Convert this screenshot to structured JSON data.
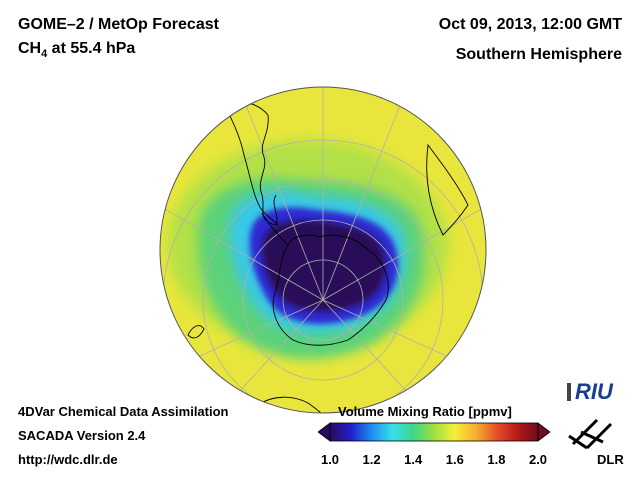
{
  "header": {
    "title": "GOME–2 / MetOp Forecast",
    "species": "CH",
    "species_sub": "4",
    "level": " at 55.4 hPa",
    "date": "Oct 09, 2013, 12:00 GMT",
    "hemisphere": "Southern Hemisphere"
  },
  "footer": {
    "line1": "4DVar Chemical Data Assimilation",
    "line2": "SACADA Version 2.4",
    "line3": "http://wdc.dlr.de"
  },
  "colorbar": {
    "title": "Volume Mixing Ratio [ppmv]",
    "min": 1.0,
    "max": 2.0,
    "ticks": [
      "1.0",
      "1.2",
      "1.4",
      "1.6",
      "1.8",
      "2.0"
    ],
    "colors": [
      "#2a0a5e",
      "#1f1fc8",
      "#1f8cf0",
      "#37e0e8",
      "#3cd68a",
      "#a0e040",
      "#f5ee3a",
      "#f7b030",
      "#e8502a",
      "#b81818",
      "#6e0e1e"
    ]
  },
  "map": {
    "projection": "orthographic, south pole",
    "vortex_value_ppmv": 1.1,
    "background_value_ppmv": 1.65,
    "colors": {
      "ocean_background": "#e8e63c",
      "ring": "#5cd27a",
      "ring_cyan": "#38c8e8",
      "vortex_blue": "#2f2ad0",
      "vortex_core": "#2c0e58",
      "coast": "#000000",
      "grid": "#b0b0b0"
    }
  },
  "logos": {
    "riu": "RIU",
    "dlr": "DLR"
  }
}
